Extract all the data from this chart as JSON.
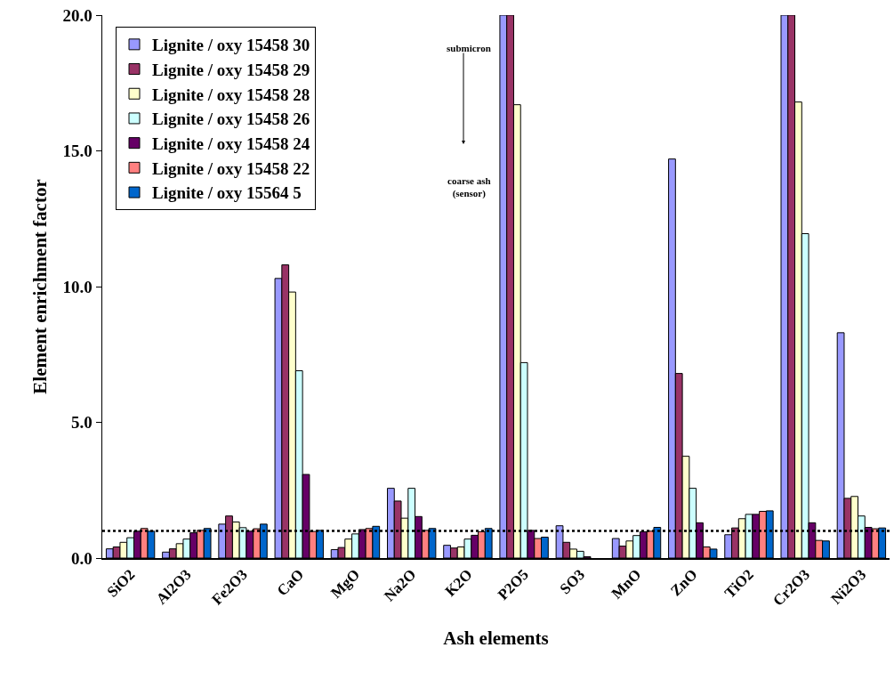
{
  "chart_data": {
    "type": "bar",
    "xlabel": "Ash elements",
    "ylabel": "Element enrichment factor",
    "categories": [
      "SiO2",
      "Al2O3",
      "Fe2O3",
      "CaO",
      "MgO",
      "Na2O",
      "K2O",
      "P2O5",
      "SO3",
      "MnO",
      "ZnO",
      "TiO2",
      "Cr2O3",
      "Ni2O3"
    ],
    "series": [
      {
        "name": "Lignite / oxy 15458 30",
        "color": "#9999ff",
        "values": [
          0.34,
          0.22,
          1.25,
          10.3,
          0.31,
          2.57,
          0.47,
          20,
          1.19,
          0.72,
          14.7,
          0.86,
          20,
          8.3
        ]
      },
      {
        "name": "Lignite / oxy 15458 29",
        "color": "#993366",
        "values": [
          0.41,
          0.34,
          1.55,
          10.8,
          0.39,
          2.1,
          0.37,
          20,
          0.58,
          0.44,
          6.8,
          1.11,
          20,
          2.2
        ]
      },
      {
        "name": "Lignite / oxy 15458 28",
        "color": "#ffffcc",
        "values": [
          0.58,
          0.53,
          1.33,
          9.8,
          0.7,
          1.47,
          0.41,
          16.7,
          0.33,
          0.63,
          3.75,
          1.45,
          16.8,
          2.27
        ]
      },
      {
        "name": "Lignite / oxy 15458 26",
        "color": "#ccffff",
        "values": [
          0.75,
          0.7,
          1.12,
          6.9,
          0.89,
          2.57,
          0.7,
          7.2,
          0.25,
          0.83,
          2.57,
          1.61,
          11.95,
          1.55
        ]
      },
      {
        "name": "Lignite / oxy 15458 24",
        "color": "#660066",
        "values": [
          0.99,
          0.93,
          0.99,
          3.08,
          1.05,
          1.53,
          0.84,
          1.02,
          0.05,
          0.97,
          1.3,
          1.61,
          1.3,
          1.13
        ]
      },
      {
        "name": "Lignite / oxy 15458 22",
        "color": "#ff8080",
        "values": [
          1.09,
          1.02,
          1.08,
          0.98,
          1.09,
          1.02,
          0.97,
          0.72,
          null,
          0.99,
          0.41,
          1.72,
          0.65,
          1.08
        ]
      },
      {
        "name": "Lignite / oxy 15564 5",
        "color": "#0066cc",
        "values": [
          0.99,
          1.09,
          1.25,
          1.02,
          1.17,
          1.09,
          1.09,
          0.77,
          null,
          1.13,
          0.33,
          1.74,
          0.63,
          1.11
        ]
      }
    ],
    "ylim": [
      0,
      20
    ],
    "yticks": [
      {
        "value": 0,
        "label": "0.0"
      },
      {
        "value": 5,
        "label": "5.0"
      },
      {
        "value": 10,
        "label": "10.0"
      },
      {
        "value": 15,
        "label": "15.0"
      },
      {
        "value": 20,
        "label": "20.0"
      }
    ],
    "grid": false,
    "legend": "top left",
    "ref_lines": [
      {
        "axis": "y",
        "value": 1,
        "color": "#000000",
        "line_style": "dotted"
      }
    ],
    "annotations": [
      "submicron",
      "coarse ash (sensor)"
    ]
  }
}
